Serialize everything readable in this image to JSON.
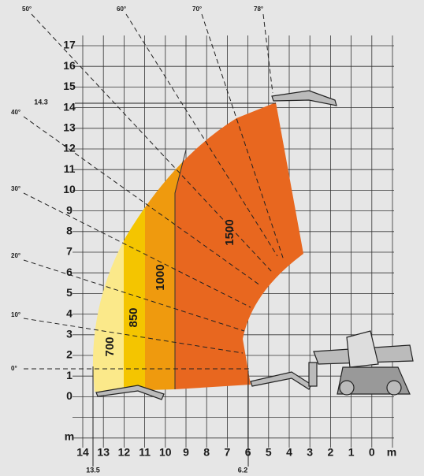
{
  "y_axis": {
    "labels": [
      "17",
      "16",
      "15",
      "14",
      "13",
      "12",
      "11",
      "10",
      "9",
      "8",
      "7",
      "6",
      "5",
      "4",
      "3",
      "2",
      "1",
      "0"
    ],
    "unit": "m"
  },
  "x_axis": {
    "labels": [
      "14",
      "13",
      "12",
      "11",
      "10",
      "9",
      "8",
      "7",
      "6",
      "5",
      "4",
      "3",
      "2",
      "1",
      "0"
    ],
    "unit": "m"
  },
  "angles_top": [
    "50°",
    "60°",
    "70°",
    "78°"
  ],
  "angles_left": [
    "40°",
    "30°",
    "20°",
    "10°",
    "0°"
  ],
  "zones": [
    "700",
    "850",
    "1000",
    "1500"
  ],
  "markers": {
    "max_height": "14.3",
    "max_reach": "13.5",
    "min_reach": "6.2"
  }
}
